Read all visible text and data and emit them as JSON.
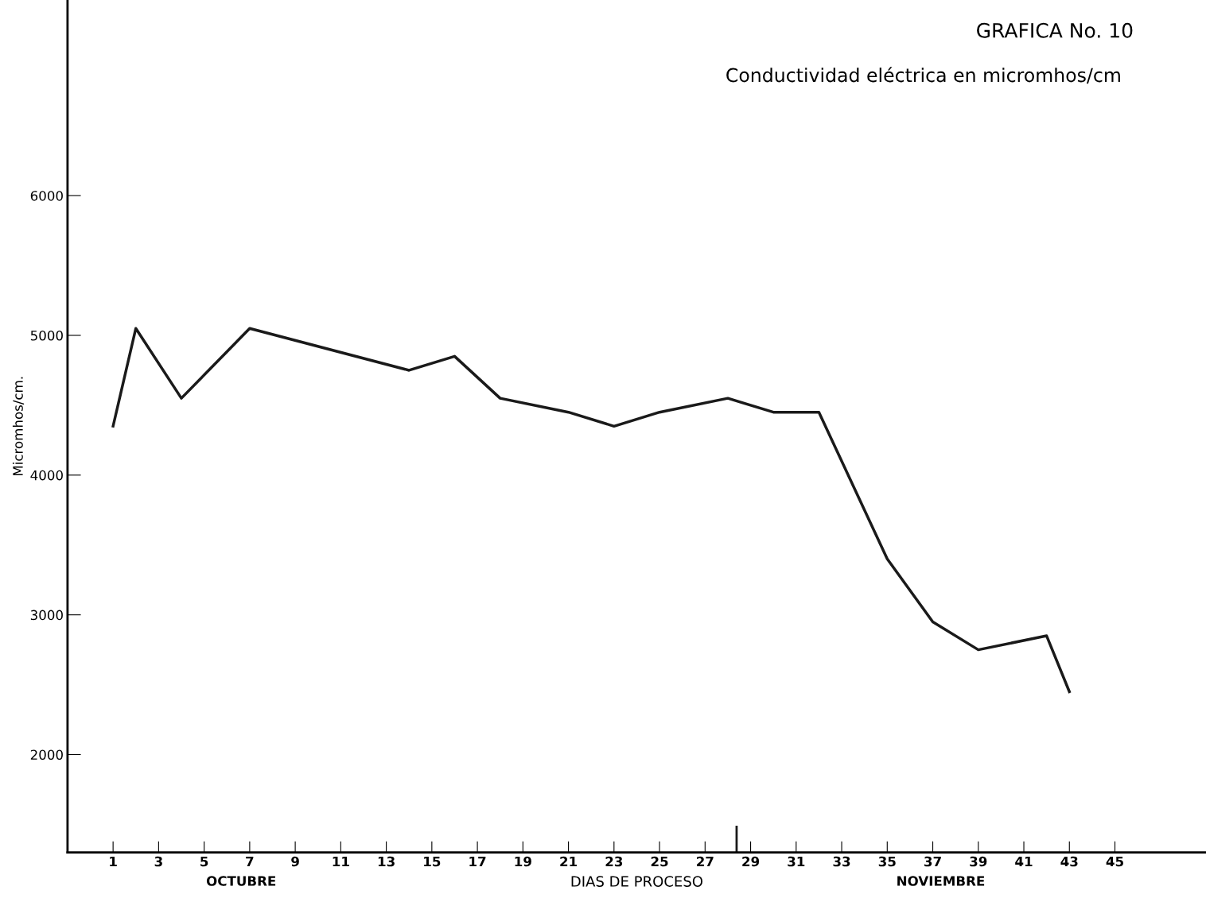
{
  "chart_data": {
    "type": "line",
    "title": "GRAFICA No. 10",
    "subtitle": "Conductividad eléctrica en micromhos/cm",
    "xlabel": "DIAS DE PROCESO",
    "ylabel": "Micromhos/cm.",
    "x": [
      1,
      2,
      4,
      7,
      14,
      16,
      18,
      21,
      23,
      25,
      28,
      30,
      32,
      35,
      37,
      39,
      42,
      43
    ],
    "series": [
      {
        "color": "#1a1a1a",
        "values": [
          4350,
          5050,
          4550,
          5050,
          4750,
          4850,
          4550,
          4450,
          4350,
          4450,
          4550,
          4450,
          4450,
          3400,
          2950,
          2750,
          2850,
          2450
        ]
      }
    ],
    "xlim": [
      -1,
      49
    ],
    "ylim": [
      1300,
      7400
    ],
    "xticks": [
      1,
      3,
      5,
      7,
      9,
      11,
      13,
      15,
      17,
      19,
      21,
      23,
      25,
      27,
      29,
      31,
      33,
      35,
      37,
      39,
      41,
      43,
      45
    ],
    "yticks": [
      2000,
      3000,
      4000,
      5000,
      6000
    ],
    "annotations": [
      "OCTUBRE",
      "NOVIEMBRE"
    ],
    "grid": false,
    "marker": "none",
    "line_style": "solid"
  }
}
